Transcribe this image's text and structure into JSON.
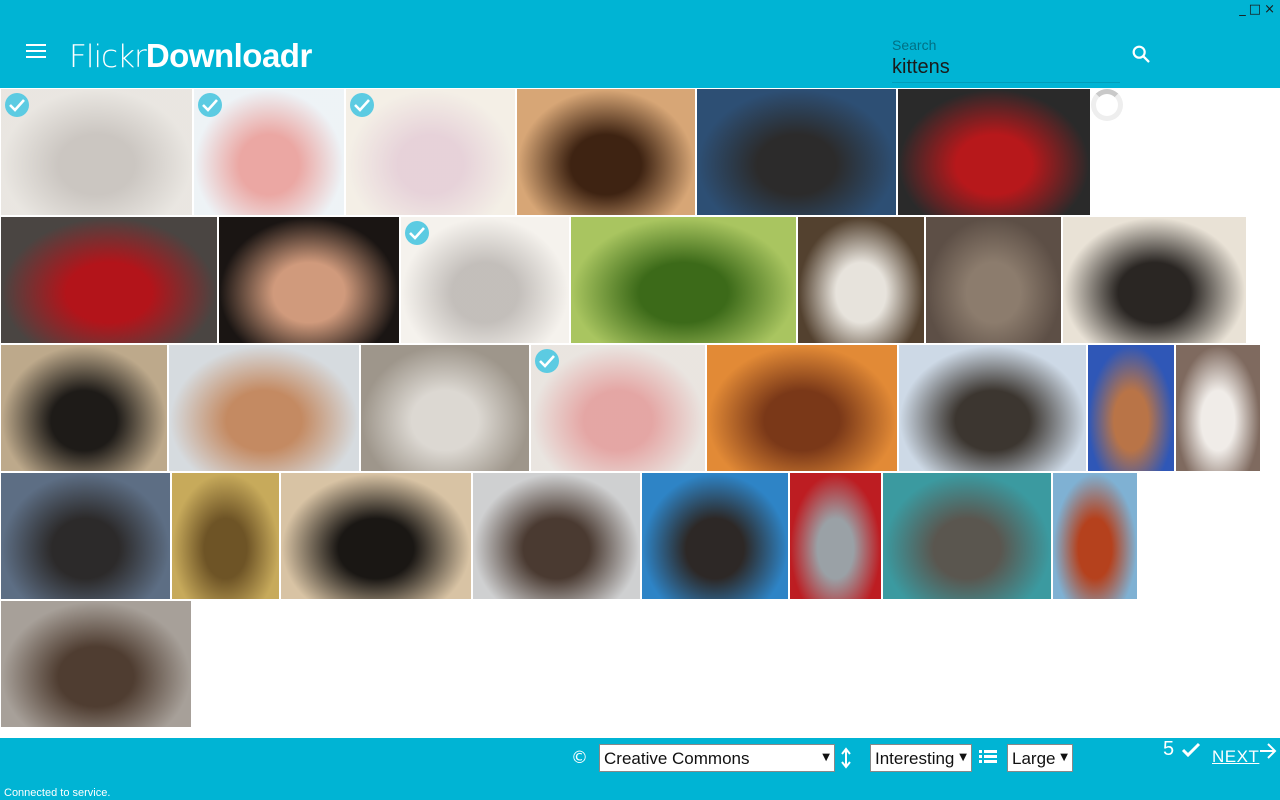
{
  "window": {
    "minimize": "_",
    "maximize": "□",
    "close": "×"
  },
  "app": {
    "logo_light": "Flickr",
    "logo_bold": "Downloadr"
  },
  "search": {
    "label": "Search",
    "value": "kittens"
  },
  "photos": [
    {
      "selected": true,
      "colors": [
        "#cfc8bd",
        "#8b8075"
      ]
    },
    {
      "selected": true,
      "colors": [
        "#d8e4ec",
        "#d23b32"
      ]
    },
    {
      "selected": true,
      "colors": [
        "#e6dcc8",
        "#c99cab"
      ]
    },
    {
      "selected": false,
      "colors": [
        "#d7a676",
        "#3e2312"
      ]
    },
    {
      "selected": false,
      "colors": [
        "#2d4f74",
        "#2c2b2b"
      ]
    },
    {
      "selected": false,
      "colors": [
        "#2a2a2a",
        "#b7181b"
      ]
    },
    {
      "selected": false,
      "colors": [
        "#4a4542",
        "#b3141a"
      ]
    },
    {
      "selected": false,
      "colors": [
        "#1a1513",
        "#d09a7c"
      ]
    },
    {
      "selected": true,
      "colors": [
        "#e9e2d7",
        "#7a7067"
      ]
    },
    {
      "selected": false,
      "colors": [
        "#a9c560",
        "#3c6a19"
      ]
    },
    {
      "selected": false,
      "colors": [
        "#53412f",
        "#e7e3dc"
      ]
    },
    {
      "selected": false,
      "colors": [
        "#5d4f46",
        "#8c7c6d"
      ]
    },
    {
      "selected": false,
      "colors": [
        "#e9e2d6",
        "#2a2623"
      ]
    },
    {
      "selected": false,
      "colors": [
        "#bda98b",
        "#1e1b18"
      ]
    },
    {
      "selected": false,
      "colors": [
        "#d6dbdf",
        "#c48a62"
      ]
    },
    {
      "selected": false,
      "colors": [
        "#9e968b",
        "#dcd8d2"
      ]
    },
    {
      "selected": true,
      "colors": [
        "#cfc5bb",
        "#c43a36"
      ]
    },
    {
      "selected": false,
      "colors": [
        "#e28a36",
        "#7a3818"
      ]
    },
    {
      "selected": false,
      "colors": [
        "#cdd9e6",
        "#3c3630"
      ]
    },
    {
      "selected": false,
      "colors": [
        "#2f57b7",
        "#b97447"
      ]
    },
    {
      "selected": false,
      "colors": [
        "#7f6a5f",
        "#f0ece8"
      ]
    },
    {
      "selected": false,
      "colors": [
        "#5d6e84",
        "#2c2a2a"
      ]
    },
    {
      "selected": false,
      "colors": [
        "#c7aa5b",
        "#6e5426"
      ]
    },
    {
      "selected": false,
      "colors": [
        "#d8c3a4",
        "#1a1714"
      ]
    },
    {
      "selected": false,
      "colors": [
        "#cfd0d1",
        "#4a3a31"
      ]
    },
    {
      "selected": false,
      "colors": [
        "#2e84c6",
        "#2d2826"
      ]
    },
    {
      "selected": false,
      "colors": [
        "#bd1d22",
        "#9aa1a6"
      ]
    },
    {
      "selected": false,
      "colors": [
        "#3b9aa0",
        "#5a564f"
      ]
    },
    {
      "selected": false,
      "colors": [
        "#7fb1d3",
        "#b5411d"
      ]
    },
    {
      "selected": false,
      "colors": [
        "#a7a099",
        "#4f3d31"
      ]
    }
  ],
  "footer": {
    "license_icon": "©",
    "license": "Creative Commons",
    "sort_icon": "sort-vertical-icon",
    "sort": "Interesting",
    "view_icon": "list-icon",
    "size": "Large",
    "selected_count": "5",
    "next_label": "NEXT",
    "status": "Connected to service."
  },
  "colors": {
    "accent": "#00b4d4",
    "check": "#5ccbe2"
  }
}
